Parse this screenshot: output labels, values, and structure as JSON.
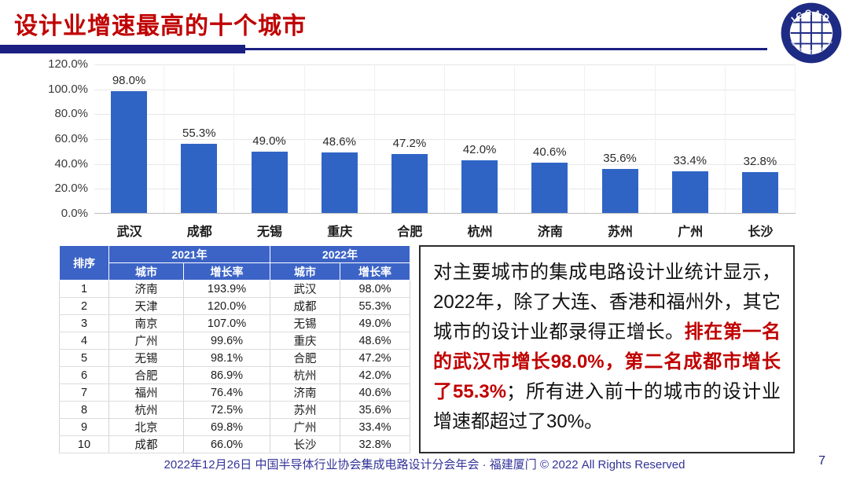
{
  "page": {
    "title": "设计业增速最高的十个城市",
    "footer": "2022年12月26日 中国半导体行业协会集成电路设计分会年会 · 福建厦门 © 2022 All Rights Reserved",
    "page_number": "7"
  },
  "logo": {
    "text": "ICCAD",
    "ring_text": "中国半导体行业协会集成电路设计分会"
  },
  "chart_data": {
    "type": "bar",
    "title": "",
    "xlabel": "",
    "ylabel": "",
    "categories": [
      "武汉",
      "成都",
      "无锡",
      "重庆",
      "合肥",
      "杭州",
      "济南",
      "苏州",
      "广州",
      "长沙"
    ],
    "values": [
      98.0,
      55.3,
      49.0,
      48.6,
      47.2,
      42.0,
      40.6,
      35.6,
      33.4,
      32.8
    ],
    "bar_labels": [
      "98.0%",
      "55.3%",
      "49.0%",
      "48.6%",
      "47.2%",
      "42.0%",
      "40.6%",
      "35.6%",
      "33.4%",
      "32.8%"
    ],
    "yticks": [
      "0.0%",
      "20.0%",
      "40.0%",
      "60.0%",
      "80.0%",
      "100.0%",
      "120.0%"
    ],
    "ytick_values": [
      0,
      20,
      40,
      60,
      80,
      100,
      120
    ],
    "ylim": [
      0,
      120
    ],
    "grid": true,
    "legend": false,
    "bar_color": "#2F64C5"
  },
  "table": {
    "rank_header": "排序",
    "group_headers": [
      "2021年",
      "2022年"
    ],
    "sub_headers": [
      "城市",
      "增长率",
      "城市",
      "增长率"
    ],
    "rows": [
      [
        "1",
        "济南",
        "193.9%",
        "武汉",
        "98.0%"
      ],
      [
        "2",
        "天津",
        "120.0%",
        "成都",
        "55.3%"
      ],
      [
        "3",
        "南京",
        "107.0%",
        "无锡",
        "49.0%"
      ],
      [
        "4",
        "广州",
        "99.6%",
        "重庆",
        "48.6%"
      ],
      [
        "5",
        "无锡",
        "98.1%",
        "合肥",
        "47.2%"
      ],
      [
        "6",
        "合肥",
        "86.9%",
        "杭州",
        "42.0%"
      ],
      [
        "7",
        "福州",
        "76.4%",
        "济南",
        "40.6%"
      ],
      [
        "8",
        "杭州",
        "72.5%",
        "苏州",
        "35.6%"
      ],
      [
        "9",
        "北京",
        "69.8%",
        "广州",
        "33.4%"
      ],
      [
        "10",
        "成都",
        "66.0%",
        "长沙",
        "32.8%"
      ]
    ],
    "header_bg": "#3C63C6"
  },
  "commentary": {
    "part1": "对主要城市的集成电路设计业统计显示，2022年，除了大连、香港和福州外，其它城市的设计业都录得正增长。",
    "highlight": "排在第一名的武汉市增长98.0%，第二名成都市增长了55.3%",
    "part2": "；所有进入前十的城市的设计业增速都超过了30%。"
  },
  "colors": {
    "title_red": "#C00000",
    "accent_navy": "#1B1F82",
    "bar_blue": "#2F64C5",
    "table_header_blue": "#3C63C6",
    "footer_blue": "#333399",
    "highlight_red": "#C00000"
  }
}
